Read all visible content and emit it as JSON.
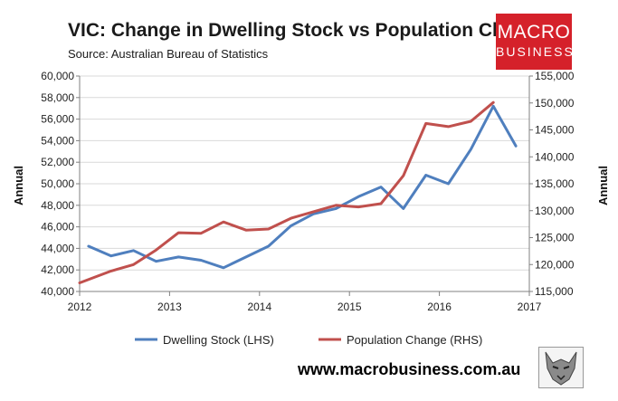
{
  "header": {
    "title": "VIC: Change in Dwelling Stock vs Population Change",
    "subtitle": "Source: Australian Bureau of Statistics"
  },
  "logo": {
    "line1": "MACRO",
    "line2": "BUSINESS"
  },
  "footer": {
    "url": "www.macrobusiness.com.au"
  },
  "colors": {
    "dwelling": "#4f7fbe",
    "population": "#c0504d",
    "grid": "#d9d9d9",
    "axis": "#808080",
    "logo_bg": "#d5212a"
  },
  "chart_data": {
    "type": "line",
    "title": "VIC: Change in Dwelling Stock vs Population Change",
    "ylabel_left": "Annual",
    "ylabel_right": "Annual",
    "xlim": [
      2012,
      2017
    ],
    "x_ticks": [
      2012,
      2013,
      2014,
      2015,
      2016,
      2017
    ],
    "ylim_left": [
      40000,
      60000
    ],
    "y_ticks_left": [
      40000,
      42000,
      44000,
      46000,
      48000,
      50000,
      52000,
      54000,
      56000,
      58000,
      60000
    ],
    "ylim_right": [
      115000,
      155000
    ],
    "y_ticks_right": [
      115000,
      120000,
      125000,
      130000,
      135000,
      140000,
      145000,
      150000,
      155000
    ],
    "grid": "horizontal",
    "legend": "bottom",
    "series": [
      {
        "name": "Dwelling Stock (LHS)",
        "axis": "left",
        "x": [
          2012.1,
          2012.35,
          2012.6,
          2012.85,
          2013.1,
          2013.35,
          2013.6,
          2013.85,
          2014.1,
          2014.35,
          2014.6,
          2014.85,
          2015.1,
          2015.35,
          2015.6,
          2015.85,
          2016.1,
          2016.35,
          2016.6,
          2016.85
        ],
        "values": [
          44200,
          43300,
          43800,
          42800,
          43200,
          42900,
          42200,
          43200,
          44200,
          46100,
          47200,
          47700,
          48800,
          49700,
          47700,
          50800,
          50000,
          53200,
          57200,
          53500
        ]
      },
      {
        "name": "Population Change (RHS)",
        "axis": "right",
        "x": [
          2012.0,
          2012.35,
          2012.6,
          2012.85,
          2013.1,
          2013.35,
          2013.6,
          2013.85,
          2014.1,
          2014.35,
          2014.6,
          2014.85,
          2015.1,
          2015.35,
          2015.6,
          2015.85,
          2016.1,
          2016.35,
          2016.6
        ],
        "values": [
          116600,
          118800,
          120000,
          122700,
          125900,
          125800,
          127900,
          126400,
          126600,
          128600,
          129800,
          131000,
          130700,
          131300,
          136500,
          146200,
          145600,
          146600,
          150100
        ]
      }
    ]
  }
}
